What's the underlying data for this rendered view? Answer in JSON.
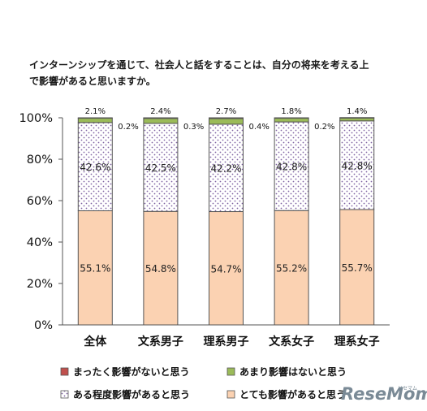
{
  "chart_data": {
    "type": "bar",
    "stacked": true,
    "title_lines": [
      "インターンシップを通じて、社会人と話をすることは、自分の将来を考える上",
      "で影響があると思いますか。"
    ],
    "categories": [
      "全体",
      "文系男子",
      "理系男子",
      "文系女子",
      "理系女子"
    ],
    "series": [
      {
        "name": "とても影響があると思う",
        "values": [
          55.1,
          54.8,
          54.7,
          55.2,
          55.7
        ],
        "color": "#fbd2b2"
      },
      {
        "name": "ある程度影響があると思う",
        "values": [
          42.6,
          42.5,
          42.2,
          42.8,
          42.8
        ],
        "color": "#ffffff",
        "pattern": "purple-dots"
      },
      {
        "name": "あまり影響はないと思う",
        "values": [
          2.1,
          2.4,
          2.7,
          1.8,
          1.4
        ],
        "color": "#9bbb59"
      },
      {
        "name": "まったく影響がないと思う",
        "values": [
          0.2,
          0.3,
          0.4,
          0.2,
          0.2
        ],
        "color": "#c0504d"
      }
    ],
    "data_labels": {
      "bottom": [
        "55.1%",
        "54.8%",
        "54.7%",
        "55.2%",
        "55.7%"
      ],
      "middle": [
        "42.6%",
        "42.5%",
        "42.2%",
        "42.8%",
        "42.8%"
      ],
      "top": [
        "2.1%",
        "2.4%",
        "2.7%",
        "1.8%",
        "1.4%"
      ],
      "side": [
        "0.2%",
        "0.3%",
        "0.4%",
        "0.2%"
      ]
    },
    "y_ticks": [
      "0%",
      "20%",
      "40%",
      "60%",
      "80%",
      "100%"
    ],
    "ylim": [
      0,
      100
    ],
    "grid": false,
    "legend_position": "bottom",
    "legend_order": [
      "まったく影響がないと思う",
      "あまり影響はないと思う",
      "ある程度影響があると思う",
      "とても影響があると思う"
    ]
  },
  "watermark": {
    "text": "ReseMom",
    "sub": "リセマム"
  }
}
